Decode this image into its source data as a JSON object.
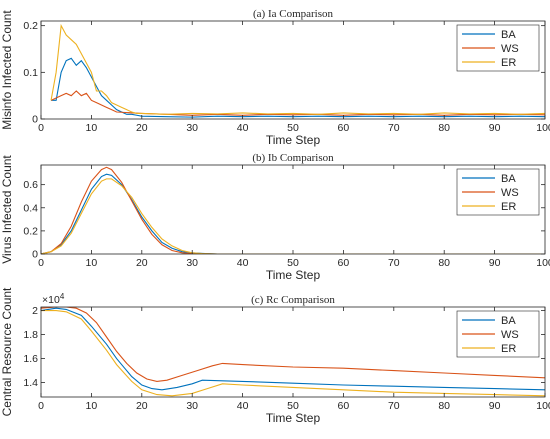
{
  "colors": {
    "BA": "#0072BD",
    "WS": "#D95319",
    "ER": "#EDB120"
  },
  "chart_data": [
    {
      "type": "line",
      "title": "(a) Ia Comparison",
      "xlabel": "Time Step",
      "ylabel": "Misinfo Infected Count",
      "xlim": [
        0,
        100
      ],
      "ylim": [
        0,
        0.21
      ],
      "xticks": [
        0,
        10,
        20,
        30,
        40,
        50,
        60,
        70,
        80,
        90,
        100
      ],
      "yticks": [
        0,
        0.1,
        0.2
      ],
      "ytick_labels": [
        "0",
        "0.1",
        "0.2"
      ],
      "legend": "top-right",
      "series": [
        {
          "name": "BA",
          "x": [
            2,
            3,
            4,
            5,
            6,
            7,
            8,
            9,
            10,
            11,
            12,
            13,
            14,
            15,
            16,
            17,
            18,
            19,
            20,
            25,
            30,
            35,
            40,
            45,
            50,
            55,
            60,
            65,
            70,
            75,
            80,
            85,
            90,
            95,
            100
          ],
          "y": [
            0.04,
            0.04,
            0.1,
            0.125,
            0.13,
            0.115,
            0.125,
            0.11,
            0.09,
            0.07,
            0.05,
            0.04,
            0.03,
            0.02,
            0.015,
            0.01,
            0.01,
            0.008,
            0.006,
            0.005,
            0.004,
            0.006,
            0.005,
            0.006,
            0.005,
            0.006,
            0.005,
            0.006,
            0.005,
            0.006,
            0.005,
            0.006,
            0.005,
            0.006,
            0.005
          ]
        },
        {
          "name": "WS",
          "x": [
            2,
            3,
            4,
            5,
            6,
            7,
            8,
            9,
            10,
            11,
            12,
            13,
            14,
            15,
            20,
            25,
            30,
            35,
            40,
            45,
            50,
            55,
            60,
            65,
            70,
            75,
            80,
            85,
            90,
            95,
            100
          ],
          "y": [
            0.04,
            0.045,
            0.05,
            0.055,
            0.05,
            0.06,
            0.05,
            0.055,
            0.04,
            0.035,
            0.03,
            0.025,
            0.02,
            0.015,
            0.012,
            0.01,
            0.008,
            0.01,
            0.008,
            0.01,
            0.009,
            0.01,
            0.008,
            0.01,
            0.009,
            0.01,
            0.008,
            0.01,
            0.009,
            0.01,
            0.009
          ]
        },
        {
          "name": "ER",
          "x": [
            2,
            3,
            4,
            5,
            6,
            7,
            8,
            9,
            10,
            11,
            12,
            13,
            14,
            15,
            16,
            17,
            18,
            19,
            20,
            25,
            30,
            35,
            40,
            45,
            50,
            55,
            60,
            65,
            70,
            75,
            80,
            85,
            90,
            95,
            100
          ],
          "y": [
            0.04,
            0.1,
            0.2,
            0.18,
            0.17,
            0.16,
            0.14,
            0.12,
            0.1,
            0.06,
            0.06,
            0.05,
            0.035,
            0.03,
            0.025,
            0.02,
            0.015,
            0.012,
            0.012,
            0.01,
            0.012,
            0.011,
            0.013,
            0.011,
            0.012,
            0.01,
            0.013,
            0.011,
            0.012,
            0.01,
            0.013,
            0.011,
            0.012,
            0.01,
            0.012
          ]
        }
      ]
    },
    {
      "type": "line",
      "title": "(b) Ib Comparison",
      "xlabel": "Time Step",
      "ylabel": "Virus Infected Count",
      "xlim": [
        0,
        100
      ],
      "ylim": [
        0,
        0.77
      ],
      "xticks": [
        0,
        10,
        20,
        30,
        40,
        50,
        60,
        70,
        80,
        90,
        100
      ],
      "yticks": [
        0,
        0.2,
        0.4,
        0.6
      ],
      "ytick_labels": [
        "0",
        "0.2",
        "0.4",
        "0.6"
      ],
      "legend": "top-right",
      "series": [
        {
          "name": "BA",
          "x": [
            0,
            2,
            4,
            6,
            8,
            10,
            12,
            13,
            14,
            16,
            18,
            20,
            22,
            24,
            26,
            28,
            30,
            32,
            35,
            40,
            50,
            100
          ],
          "y": [
            0,
            0.02,
            0.08,
            0.2,
            0.38,
            0.56,
            0.67,
            0.69,
            0.68,
            0.6,
            0.47,
            0.32,
            0.2,
            0.1,
            0.05,
            0.02,
            0.01,
            0.005,
            0,
            0,
            0,
            0
          ]
        },
        {
          "name": "WS",
          "x": [
            0,
            2,
            4,
            6,
            8,
            10,
            12,
            13,
            14,
            16,
            18,
            20,
            22,
            24,
            26,
            28,
            30,
            35,
            40,
            100
          ],
          "y": [
            0,
            0.02,
            0.09,
            0.24,
            0.45,
            0.63,
            0.73,
            0.75,
            0.73,
            0.62,
            0.46,
            0.3,
            0.17,
            0.08,
            0.03,
            0.01,
            0.003,
            0,
            0,
            0
          ]
        },
        {
          "name": "ER",
          "x": [
            0,
            2,
            4,
            6,
            8,
            10,
            12,
            13,
            14,
            16,
            18,
            20,
            22,
            24,
            26,
            28,
            30,
            32,
            35,
            40,
            100
          ],
          "y": [
            0,
            0.02,
            0.07,
            0.18,
            0.35,
            0.52,
            0.63,
            0.65,
            0.65,
            0.59,
            0.49,
            0.35,
            0.23,
            0.13,
            0.07,
            0.03,
            0.01,
            0.004,
            0,
            0,
            0
          ]
        }
      ]
    },
    {
      "type": "line",
      "title": "(c) Rc Comparison",
      "xlabel": "Time Step",
      "ylabel": "Central Resource Count",
      "multiplier": "×10",
      "multiplier_exp": "4",
      "xlim": [
        0,
        100
      ],
      "ylim": [
        1.28,
        2.03
      ],
      "xticks": [
        0,
        10,
        20,
        30,
        40,
        50,
        60,
        70,
        80,
        90,
        100
      ],
      "yticks": [
        1.4,
        1.6,
        1.8,
        2.0
      ],
      "ytick_labels": [
        "1.4",
        "1.6",
        "1.8",
        "2"
      ],
      "legend": "top-right",
      "series": [
        {
          "name": "BA",
          "x": [
            0,
            3,
            5,
            8,
            10,
            13,
            15,
            18,
            20,
            22,
            24,
            27,
            30,
            32,
            40,
            50,
            60,
            70,
            80,
            90,
            100
          ],
          "y": [
            2.0,
            2.02,
            2.01,
            1.96,
            1.87,
            1.72,
            1.6,
            1.45,
            1.38,
            1.35,
            1.34,
            1.36,
            1.39,
            1.42,
            1.41,
            1.395,
            1.38,
            1.37,
            1.36,
            1.35,
            1.34
          ]
        },
        {
          "name": "WS",
          "x": [
            0,
            3,
            5,
            7,
            9,
            11,
            13,
            15,
            17,
            19,
            21,
            23,
            25,
            28,
            31,
            34,
            36,
            40,
            50,
            60,
            70,
            80,
            90,
            100
          ],
          "y": [
            2.02,
            2.03,
            2.03,
            2.02,
            1.98,
            1.9,
            1.78,
            1.66,
            1.56,
            1.48,
            1.43,
            1.41,
            1.42,
            1.46,
            1.5,
            1.54,
            1.56,
            1.55,
            1.53,
            1.52,
            1.5,
            1.48,
            1.46,
            1.44
          ]
        },
        {
          "name": "ER",
          "x": [
            0,
            3,
            5,
            8,
            10,
            13,
            15,
            18,
            20,
            23,
            26,
            30,
            33,
            36,
            40,
            50,
            60,
            70,
            80,
            90,
            100
          ],
          "y": [
            2.0,
            2.0,
            1.99,
            1.93,
            1.83,
            1.67,
            1.55,
            1.41,
            1.34,
            1.3,
            1.29,
            1.31,
            1.35,
            1.39,
            1.38,
            1.36,
            1.34,
            1.32,
            1.31,
            1.3,
            1.29
          ]
        }
      ]
    }
  ]
}
